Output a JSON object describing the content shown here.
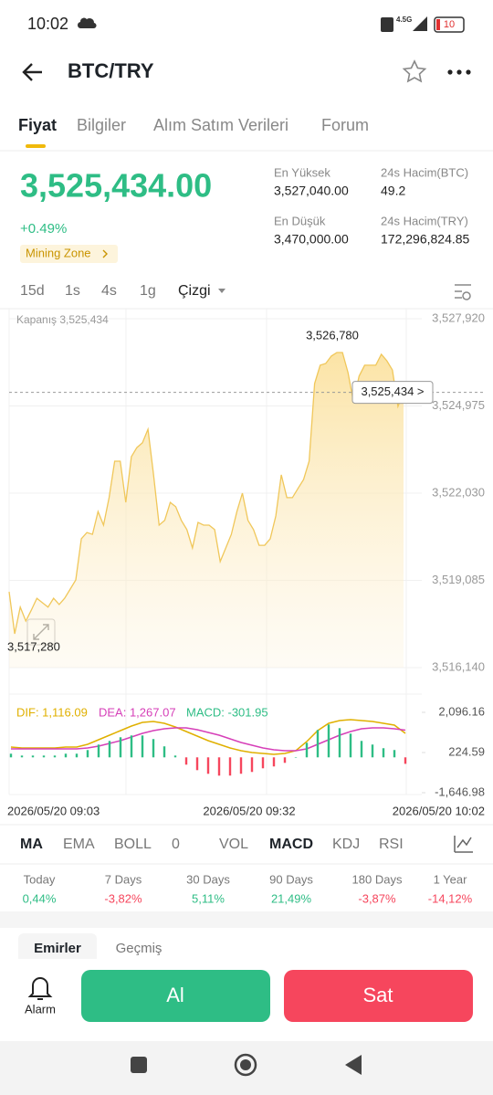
{
  "status_bar": {
    "time": "10:02",
    "network": "4.5G",
    "battery": "10"
  },
  "header": {
    "title": "BTC/TRY"
  },
  "tabs": [
    "Fiyat",
    "Bilgiler",
    "Alım Satım Verileri",
    "Forum"
  ],
  "price": {
    "last": "3,525,434.00",
    "change": "+0.49%",
    "badge": "Mining Zone"
  },
  "stats": [
    {
      "label": "En Yüksek",
      "value": "3,527,040.00"
    },
    {
      "label": "24s Hacim(BTC)",
      "value": "49.2"
    },
    {
      "label": "En Düşük",
      "value": "3,470,000.00"
    },
    {
      "label": "24s Hacim(TRY)",
      "value": "172,296,824.85"
    }
  ],
  "intervals": [
    "15d",
    "1s",
    "4s",
    "1g",
    "Çizgi"
  ],
  "chart_data": [
    {
      "type": "area",
      "color": "#f0c75a",
      "grid": true,
      "close_label": "Kapanış 3,525,434",
      "high_label": "3,526,780",
      "low_label": "3,517,280",
      "last_label": "3,525,434 >",
      "ylim": [
        3516140,
        3527920
      ],
      "yticks": [
        {
          "value": 3516140,
          "label": "3,516,140"
        },
        {
          "value": 3519085,
          "label": "3,519,085"
        },
        {
          "value": 3522030,
          "label": "3,522,030"
        },
        {
          "value": 3524975,
          "label": "3,524,975"
        },
        {
          "value": 3527920,
          "label": "3,527,920"
        }
      ],
      "values": [
        3518700,
        3517280,
        3518180,
        3517710,
        3518080,
        3518480,
        3518330,
        3518180,
        3518480,
        3518270,
        3518480,
        3518790,
        3519100,
        3520490,
        3520700,
        3520640,
        3521410,
        3520950,
        3521880,
        3523110,
        3523110,
        3521720,
        3523260,
        3523570,
        3523730,
        3524190,
        3522650,
        3520950,
        3521110,
        3521720,
        3521570,
        3521110,
        3520800,
        3520180,
        3521040,
        3520950,
        3520950,
        3520800,
        3519720,
        3520180,
        3520640,
        3521410,
        3522030,
        3521110,
        3520800,
        3520270,
        3520270,
        3520490,
        3521260,
        3522650,
        3521880,
        3521880,
        3522190,
        3522490,
        3523110,
        3525730,
        3526350,
        3526410,
        3526660,
        3526780,
        3526780,
        3526100,
        3525110,
        3525980,
        3526350,
        3526350,
        3526350,
        3526720,
        3526500,
        3526190,
        3524960,
        3525434
      ]
    },
    {
      "type": "macd",
      "x_labels": [
        "2026/05/20 09:03",
        "2026/05/20 09:32",
        "2026/05/20 10:02"
      ],
      "ylim": [
        -1646.98,
        2096.16
      ],
      "yticks": [
        {
          "value": -1646.98,
          "label": "-1,646.98"
        },
        {
          "value": 224.59,
          "label": "224.59"
        },
        {
          "value": 2096.16,
          "label": "2,096.16"
        }
      ],
      "series": [
        {
          "name": "DIF: 1,116.09",
          "color": "#e0b000",
          "values": [
            480,
            437,
            437,
            437,
            437,
            480,
            480,
            607,
            820,
            1033,
            1245,
            1458,
            1628,
            1671,
            1586,
            1415,
            1203,
            990,
            777,
            607,
            437,
            310,
            225,
            182,
            140,
            182,
            310,
            735,
            1245,
            1586,
            1713,
            1756,
            1713,
            1671,
            1586,
            1501,
            1116.09
          ]
        },
        {
          "name": "DEA: 1,267.07",
          "color": "#d63fb8",
          "values": [
            395,
            395,
            395,
            395,
            395,
            395,
            395,
            437,
            522,
            650,
            777,
            948,
            1118,
            1245,
            1330,
            1373,
            1373,
            1288,
            1160,
            1033,
            862,
            692,
            565,
            437,
            352,
            310,
            310,
            395,
            607,
            820,
            1033,
            1203,
            1330,
            1373,
            1373,
            1330,
            1267.07
          ]
        },
        {
          "name": "MACD: -301.95",
          "type": "bar",
          "color": "#2ebd85",
          "negative_color": "#f6465d",
          "values": [
            170,
            84,
            84,
            84,
            84,
            170,
            170,
            340,
            596,
            766,
            936,
            1020,
            1020,
            852,
            512,
            84,
            -340,
            -596,
            -766,
            -852,
            -850,
            -764,
            -680,
            -510,
            -424,
            -256,
            0,
            680,
            1276,
            1532,
            1360,
            1106,
            766,
            596,
            426,
            342,
            -301.95
          ]
        }
      ]
    }
  ],
  "indicators": [
    "MA",
    "EMA",
    "BOLL",
    "0",
    "VOL",
    "MACD",
    "KDJ",
    "RSI"
  ],
  "performance": [
    {
      "label": "Today",
      "value": "0,44%"
    },
    {
      "label": "7 Days",
      "value": "-3,82%"
    },
    {
      "label": "30 Days",
      "value": "5,11%"
    },
    {
      "label": "90 Days",
      "value": "21,49%"
    },
    {
      "label": "180 Days",
      "value": "-3,87%"
    },
    {
      "label": "1 Year",
      "value": "-14,12%"
    }
  ],
  "order_tabs": [
    "Emirler",
    "Geçmiş"
  ],
  "actions": {
    "alarm": "Alarm",
    "buy": "Al",
    "sell": "Sat"
  }
}
